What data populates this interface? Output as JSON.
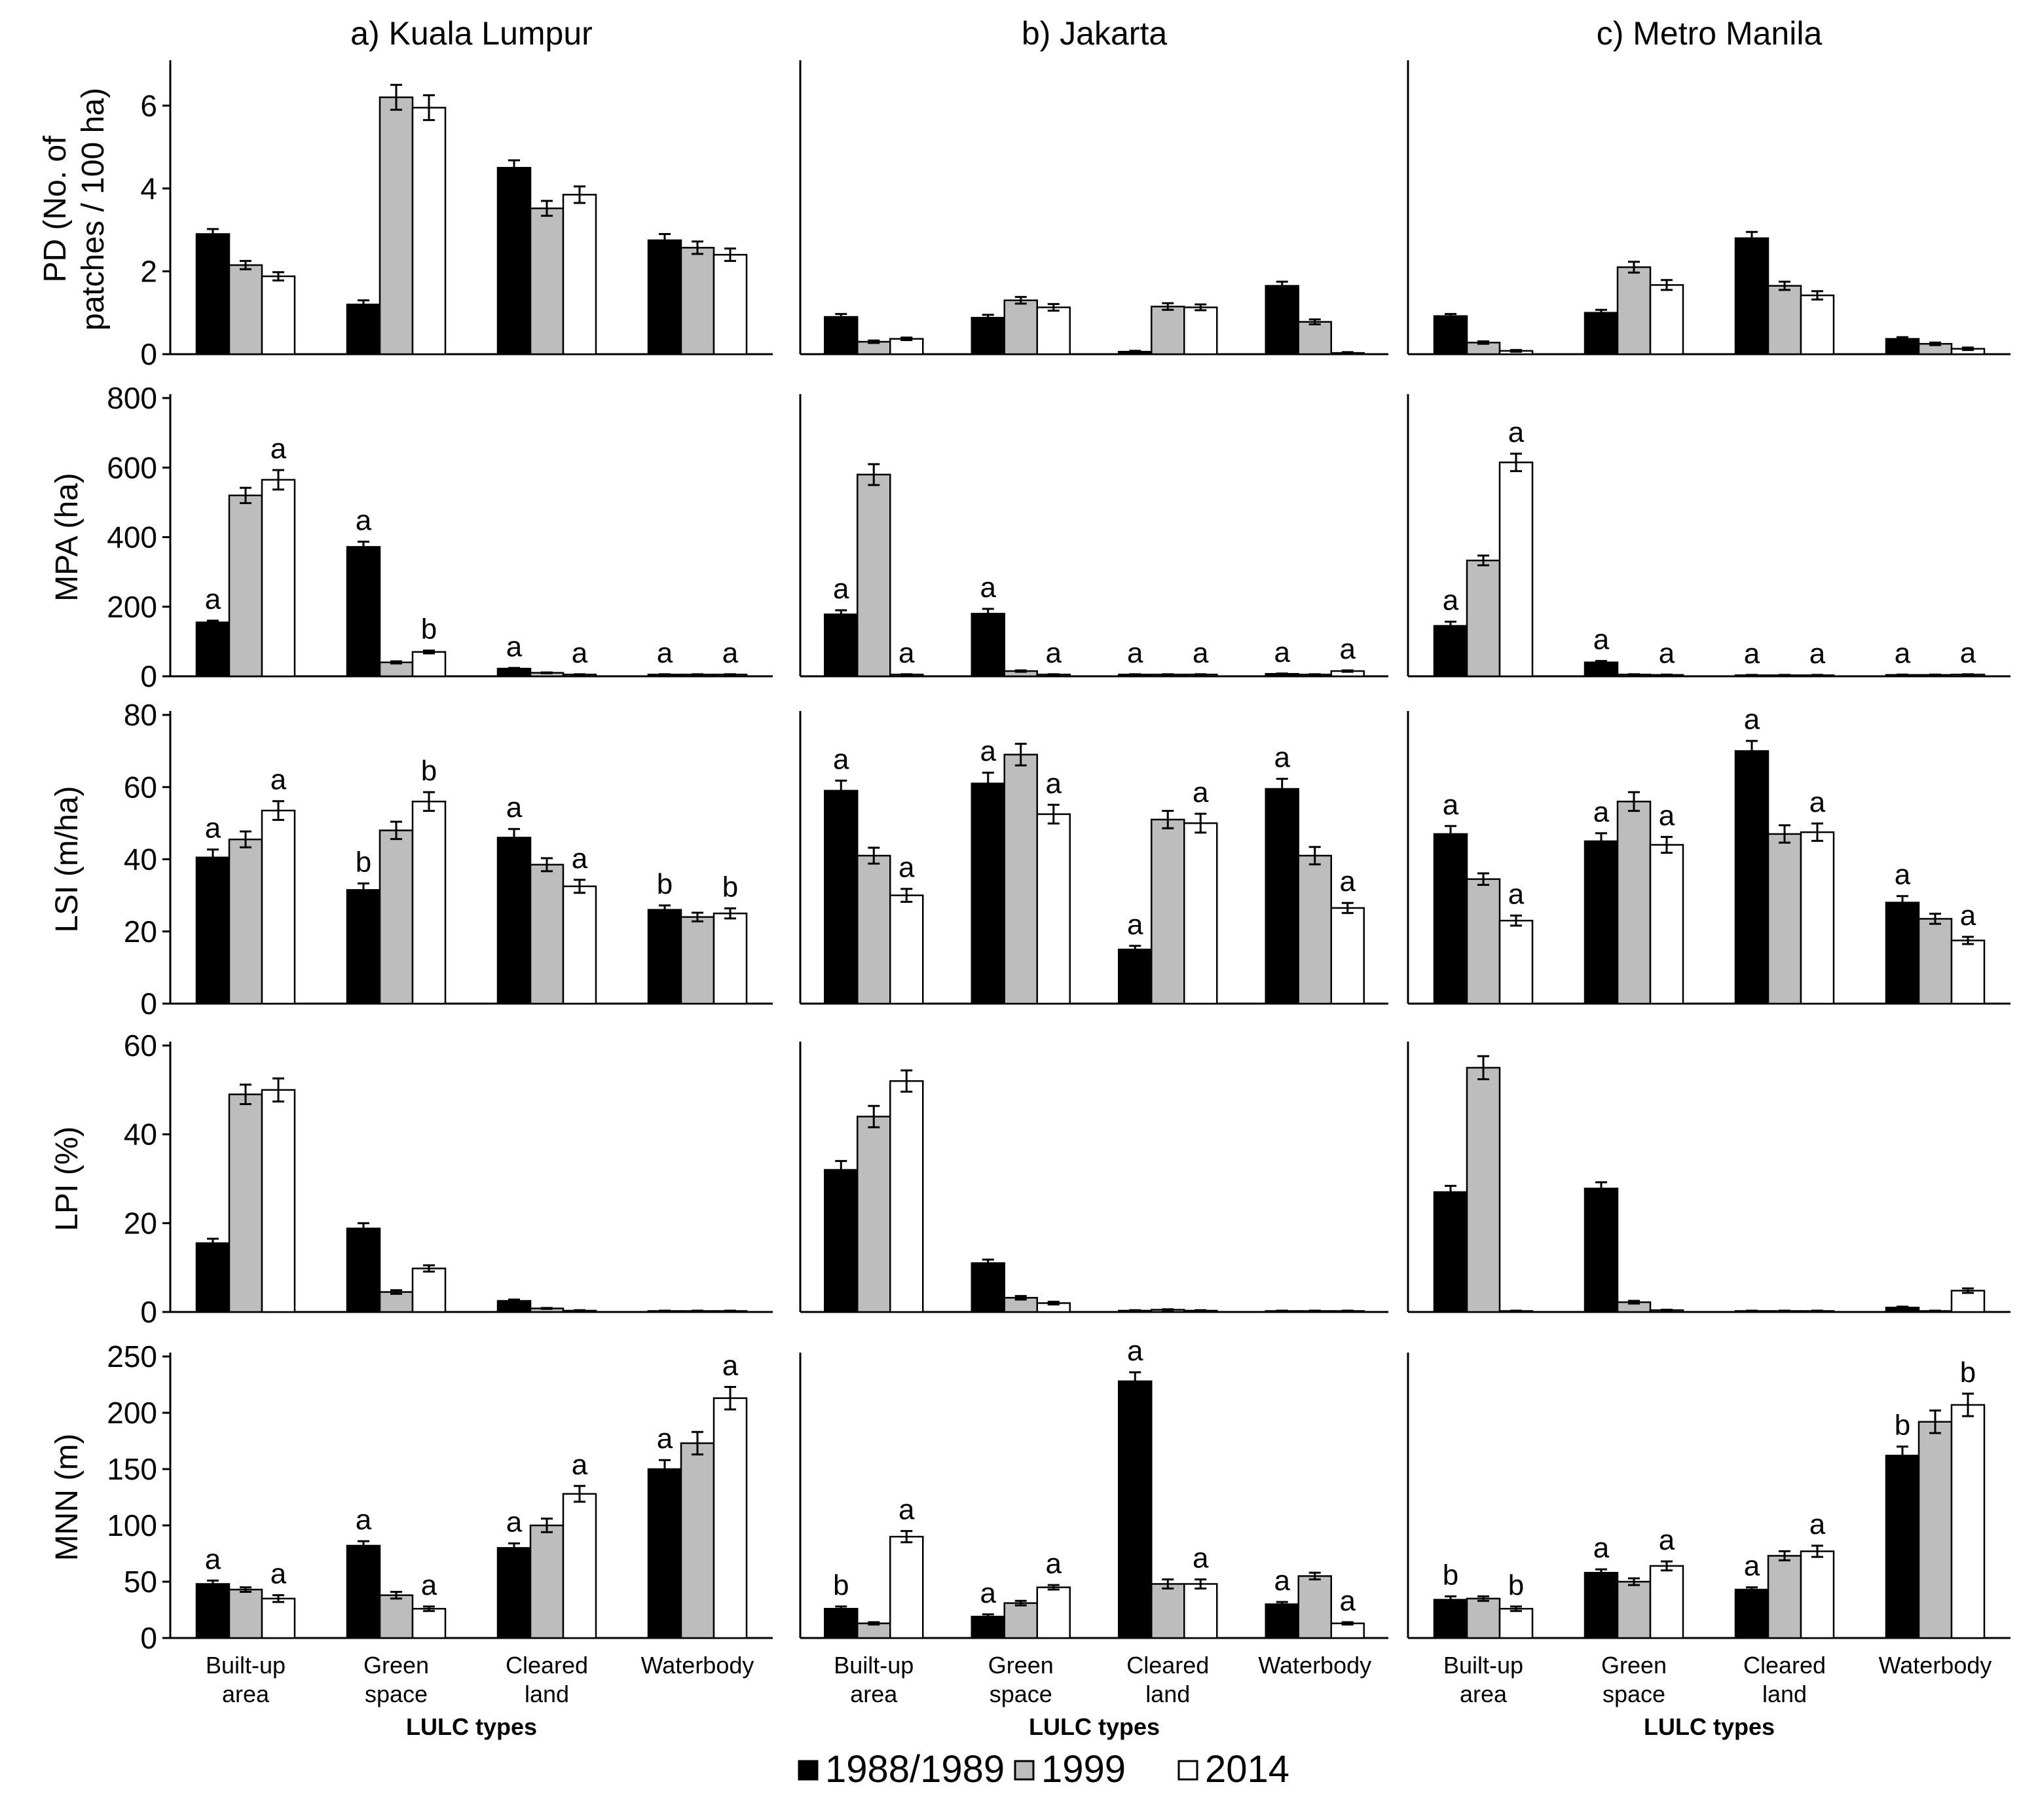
{
  "chart_data": {
    "type": "bar",
    "layout": "grouped bar chart grid, 5 metrics x 3 cities",
    "cities": [
      "a) Kuala Lumpur",
      "b) Jakarta",
      "c) Metro Manila"
    ],
    "categories": [
      "Built-up area",
      "Green space",
      "Cleared land",
      "Waterbody"
    ],
    "category_lines": [
      [
        "Built-up",
        "area"
      ],
      [
        "Green",
        "space"
      ],
      [
        "Cleared",
        "land"
      ],
      [
        "Waterbody"
      ]
    ],
    "xlabel": "LULC types",
    "series_names": [
      "1988/1989",
      "1999",
      "2014"
    ],
    "series_colors": [
      "#000000",
      "#bdbdbd",
      "#ffffff"
    ],
    "metrics": [
      {
        "id": "PD",
        "ylabel": [
          "PD (No. of",
          "patches / 100 ha)"
        ],
        "ylim": [
          0,
          7
        ],
        "ticks": [
          0,
          2,
          4,
          6
        ],
        "values": [
          [
            [
              2.9,
              2.15,
              1.88
            ],
            [
              1.2,
              6.2,
              5.95
            ],
            [
              4.5,
              3.52,
              3.85
            ],
            [
              2.75,
              2.57,
              2.4
            ]
          ],
          [
            [
              0.9,
              0.3,
              0.37
            ],
            [
              0.88,
              1.3,
              1.13
            ],
            [
              0.06,
              1.15,
              1.13
            ],
            [
              1.65,
              0.78,
              0.03
            ]
          ],
          [
            [
              0.92,
              0.28,
              0.08
            ],
            [
              1.0,
              2.1,
              1.67
            ],
            [
              2.8,
              1.65,
              1.42
            ],
            [
              0.37,
              0.25,
              0.13
            ]
          ]
        ],
        "errors": [
          [
            [
              0.12,
              0.1,
              0.1
            ],
            [
              0.1,
              0.3,
              0.3
            ],
            [
              0.18,
              0.18,
              0.2
            ],
            [
              0.15,
              0.15,
              0.15
            ]
          ],
          [
            [
              0.07,
              0.03,
              0.03
            ],
            [
              0.07,
              0.08,
              0.08
            ],
            [
              0.02,
              0.08,
              0.07
            ],
            [
              0.1,
              0.06,
              0.02
            ]
          ],
          [
            [
              0.05,
              0.03,
              0.02
            ],
            [
              0.07,
              0.13,
              0.12
            ],
            [
              0.15,
              0.1,
              0.1
            ],
            [
              0.04,
              0.03,
              0.03
            ]
          ]
        ],
        "letters": [
          [
            [
              "",
              "",
              ""
            ],
            [
              "",
              "",
              ""
            ],
            [
              "",
              "",
              ""
            ],
            [
              "",
              "",
              ""
            ]
          ],
          [
            [
              "",
              "",
              ""
            ],
            [
              "",
              "",
              ""
            ],
            [
              "",
              "",
              ""
            ],
            [
              "",
              "",
              ""
            ]
          ],
          [
            [
              "",
              "",
              ""
            ],
            [
              "",
              "",
              ""
            ],
            [
              "",
              "",
              ""
            ],
            [
              "",
              "",
              ""
            ]
          ]
        ]
      },
      {
        "id": "MPA",
        "ylabel": [
          "MPA (ha)"
        ],
        "ylim": [
          0,
          800
        ],
        "ticks": [
          0,
          200,
          400,
          600,
          800
        ],
        "values": [
          [
            [
              155,
              520,
              565
            ],
            [
              372,
              40,
              70
            ],
            [
              22,
              10,
              5
            ],
            [
              5,
              5,
              5
            ]
          ],
          [
            [
              178,
              580,
              5
            ],
            [
              180,
              15,
              5
            ],
            [
              5,
              5,
              5
            ],
            [
              7,
              5,
              15
            ]
          ],
          [
            [
              145,
              333,
              615
            ],
            [
              40,
              5,
              4
            ],
            [
              3,
              3,
              3
            ],
            [
              4,
              4,
              5
            ]
          ]
        ],
        "errors": [
          [
            [
              5,
              22,
              28
            ],
            [
              15,
              3,
              4
            ],
            [
              2,
              1,
              1
            ],
            [
              1,
              1,
              1
            ]
          ],
          [
            [
              12,
              30,
              1
            ],
            [
              14,
              2,
              1
            ],
            [
              1,
              1,
              1
            ],
            [
              1,
              1,
              2
            ]
          ],
          [
            [
              12,
              14,
              25
            ],
            [
              4,
              1,
              1
            ],
            [
              1,
              1,
              1
            ],
            [
              1,
              1,
              1
            ]
          ]
        ],
        "letters": [
          [
            [
              "a",
              "",
              "a"
            ],
            [
              "a",
              "",
              "b"
            ],
            [
              "a",
              "",
              "a"
            ],
            [
              "a",
              "",
              "a"
            ]
          ],
          [
            [
              "a",
              "",
              "a"
            ],
            [
              "a",
              "",
              "a"
            ],
            [
              "a",
              "",
              "a"
            ],
            [
              "a",
              "",
              "a"
            ]
          ],
          [
            [
              "a",
              "",
              "a"
            ],
            [
              "a",
              "",
              "a"
            ],
            [
              "a",
              "",
              "a"
            ],
            [
              "a",
              "",
              "a"
            ]
          ]
        ]
      },
      {
        "id": "LSI",
        "ylabel": [
          "LSI (m/ha)"
        ],
        "ylim": [
          0,
          80
        ],
        "ticks": [
          0,
          20,
          40,
          60,
          80
        ],
        "values": [
          [
            [
              40.5,
              45.5,
              53.5
            ],
            [
              31.5,
              48.0,
              56.0
            ],
            [
              46.0,
              38.5,
              32.5
            ],
            [
              26.0,
              24.0,
              25.0
            ]
          ],
          [
            [
              59.0,
              41.0,
              30.0
            ],
            [
              61.0,
              69.0,
              52.5
            ],
            [
              15.0,
              51.0,
              50.0
            ],
            [
              59.5,
              41.0,
              26.5
            ]
          ],
          [
            [
              47.0,
              34.5,
              23.0
            ],
            [
              45.0,
              56.0,
              44.0
            ],
            [
              70.0,
              47.0,
              47.5
            ],
            [
              28.0,
              23.5,
              17.5
            ]
          ]
        ],
        "errors": [
          [
            [
              2.2,
              2.2,
              2.6
            ],
            [
              1.8,
              2.4,
              2.6
            ],
            [
              2.4,
              1.8,
              1.8
            ],
            [
              1.2,
              1.2,
              1.4
            ]
          ],
          [
            [
              2.8,
              2.2,
              1.8
            ],
            [
              3.0,
              3.0,
              2.6
            ],
            [
              1.0,
              2.4,
              2.6
            ],
            [
              2.8,
              2.4,
              1.4
            ]
          ],
          [
            [
              2.2,
              1.6,
              1.4
            ],
            [
              2.2,
              2.6,
              2.2
            ],
            [
              2.8,
              2.4,
              2.4
            ],
            [
              1.8,
              1.4,
              1.0
            ]
          ]
        ],
        "letters": [
          [
            [
              "a",
              "",
              "a"
            ],
            [
              "b",
              "",
              "b"
            ],
            [
              "a",
              "",
              "a"
            ],
            [
              "b",
              "",
              "b"
            ]
          ],
          [
            [
              "a",
              "",
              "a"
            ],
            [
              "a",
              "",
              "a"
            ],
            [
              "a",
              "",
              "a"
            ],
            [
              "a",
              "",
              "a"
            ]
          ],
          [
            [
              "a",
              "",
              "a"
            ],
            [
              "a",
              "",
              "a"
            ],
            [
              "a",
              "",
              "a"
            ],
            [
              "a",
              "",
              "a"
            ]
          ]
        ]
      },
      {
        "id": "LPI",
        "ylabel": [
          "LPI (%)"
        ],
        "ylim": [
          0,
          60
        ],
        "ticks": [
          0,
          20,
          40,
          60
        ],
        "values": [
          [
            [
              15.5,
              49.0,
              50.0
            ],
            [
              18.8,
              4.5,
              9.8
            ],
            [
              2.5,
              0.8,
              0.3
            ],
            [
              0.2,
              0.2,
              0.2
            ]
          ],
          [
            [
              32.0,
              44.0,
              52.0
            ],
            [
              11.0,
              3.2,
              2.0
            ],
            [
              0.3,
              0.5,
              0.3
            ],
            [
              0.2,
              0.2,
              0.2
            ]
          ],
          [
            [
              27.0,
              55.0,
              0.2
            ],
            [
              27.8,
              2.2,
              0.4
            ],
            [
              0.2,
              0.2,
              0.2
            ],
            [
              1.0,
              0.2,
              4.8
            ]
          ]
        ],
        "errors": [
          [
            [
              1.0,
              2.2,
              2.6
            ],
            [
              1.2,
              0.4,
              0.7
            ],
            [
              0.3,
              0.1,
              0.1
            ],
            [
              0.1,
              0.1,
              0.1
            ]
          ],
          [
            [
              2.0,
              2.4,
              2.4
            ],
            [
              0.8,
              0.4,
              0.3
            ],
            [
              0.1,
              0.1,
              0.1
            ],
            [
              0.1,
              0.1,
              0.1
            ]
          ],
          [
            [
              1.4,
              2.6,
              0.1
            ],
            [
              1.4,
              0.3,
              0.1
            ],
            [
              0.1,
              0.1,
              0.1
            ],
            [
              0.2,
              0.1,
              0.5
            ]
          ]
        ],
        "letters": [
          [
            [
              "",
              "",
              ""
            ],
            [
              "",
              "",
              ""
            ],
            [
              "",
              "",
              ""
            ],
            [
              "",
              "",
              ""
            ]
          ],
          [
            [
              "",
              "",
              ""
            ],
            [
              "",
              "",
              ""
            ],
            [
              "",
              "",
              ""
            ],
            [
              "",
              "",
              ""
            ]
          ],
          [
            [
              "",
              "",
              ""
            ],
            [
              "",
              "",
              ""
            ],
            [
              "",
              "",
              ""
            ],
            [
              "",
              "",
              ""
            ]
          ]
        ]
      },
      {
        "id": "MNN",
        "ylabel": [
          "MNN (m)"
        ],
        "ylim": [
          0,
          250
        ],
        "ticks": [
          0,
          50,
          100,
          150,
          200,
          250
        ],
        "values": [
          [
            [
              48,
              43,
              35
            ],
            [
              82,
              38,
              26
            ],
            [
              80,
              100,
              128
            ],
            [
              150,
              173,
              213
            ]
          ],
          [
            [
              26,
              13,
              90
            ],
            [
              19,
              31,
              45
            ],
            [
              228,
              48,
              48
            ],
            [
              30,
              55,
              13
            ]
          ],
          [
            [
              34,
              35,
              26
            ],
            [
              58,
              50,
              64
            ],
            [
              43,
              73,
              77
            ],
            [
              162,
              192,
              207
            ]
          ]
        ],
        "errors": [
          [
            [
              3,
              2,
              3
            ],
            [
              4,
              3,
              2
            ],
            [
              4,
              6,
              7
            ],
            [
              8,
              10,
              10
            ]
          ],
          [
            [
              2,
              1,
              5
            ],
            [
              2,
              2,
              2
            ],
            [
              8,
              4,
              4
            ],
            [
              2,
              3,
              1
            ]
          ],
          [
            [
              3,
              2,
              2
            ],
            [
              3,
              3,
              4
            ],
            [
              2,
              4,
              5
            ],
            [
              8,
              10,
              10
            ]
          ]
        ],
        "letters": [
          [
            [
              "a",
              "",
              "a"
            ],
            [
              "a",
              "",
              "a"
            ],
            [
              "a",
              "",
              "a"
            ],
            [
              "a",
              "",
              "a"
            ]
          ],
          [
            [
              "b",
              "",
              "a"
            ],
            [
              "a",
              "",
              "a"
            ],
            [
              "a",
              "",
              "a"
            ],
            [
              "a",
              "",
              "a"
            ]
          ],
          [
            [
              "b",
              "",
              "b"
            ],
            [
              "a",
              "",
              "a"
            ],
            [
              "a",
              "",
              "a"
            ],
            [
              "b",
              "",
              "b"
            ]
          ]
        ]
      }
    ]
  }
}
